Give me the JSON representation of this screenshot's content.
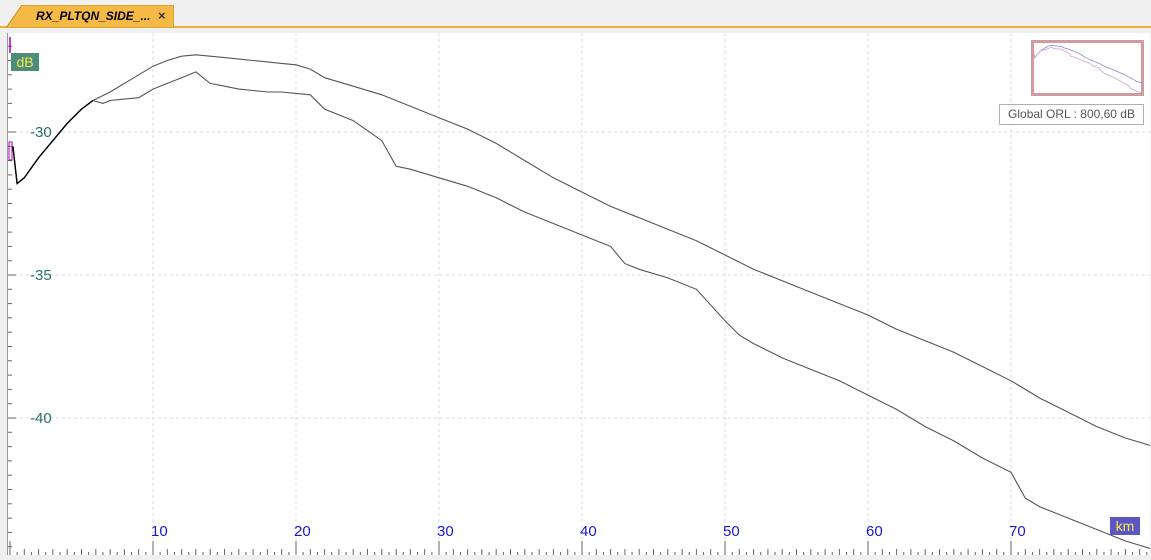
{
  "tab": {
    "label": "RX_PLTQN_SIDE_...",
    "close_glyph": "×"
  },
  "units": {
    "y": "dB",
    "x": "km"
  },
  "orl": {
    "text": "Global ORL : 800,60 dB"
  },
  "colors": {
    "trace": "#555555",
    "trace_start": "#000000",
    "x_tick": "#1a1acc",
    "y_tick": "#2a6f6f",
    "tab": "#f5b946",
    "overview_window": "#d9707a"
  },
  "chart_data": {
    "type": "line",
    "x_ticks": [
      10,
      20,
      30,
      40,
      50,
      60,
      70
    ],
    "y_ticks": [
      -30,
      -35,
      -40
    ],
    "xlim": [
      0,
      80
    ],
    "ylim": [
      -44.6,
      -26.4
    ],
    "grid": true,
    "series": [
      {
        "x": [
          0.2,
          0.5,
          1,
          2,
          3,
          4,
          5,
          5.8,
          7,
          8,
          9,
          10,
          11,
          12,
          13,
          14,
          15,
          16,
          17,
          18,
          19,
          20,
          21,
          22,
          24,
          26,
          28,
          30,
          32,
          34,
          36,
          38,
          40,
          42,
          44,
          46,
          48,
          50,
          52,
          54,
          56,
          58,
          60,
          62,
          64,
          66,
          68,
          70,
          72,
          74,
          76,
          78,
          80
        ],
        "y": [
          -30.5,
          -31.8,
          -31.6,
          -30.9,
          -30.3,
          -29.7,
          -29.2,
          -28.9,
          -28.6,
          -28.3,
          -28.0,
          -27.7,
          -27.5,
          -27.35,
          -27.3,
          -27.35,
          -27.4,
          -27.45,
          -27.5,
          -27.55,
          -27.6,
          -27.65,
          -27.8,
          -28.1,
          -28.4,
          -28.7,
          -29.1,
          -29.5,
          -29.9,
          -30.4,
          -31.0,
          -31.6,
          -32.1,
          -32.6,
          -33.0,
          -33.4,
          -33.8,
          -34.3,
          -34.8,
          -35.2,
          -35.6,
          -36.0,
          -36.4,
          -36.9,
          -37.3,
          -37.7,
          -38.2,
          -38.7,
          -39.3,
          -39.8,
          -40.3,
          -40.7,
          -41.0
        ]
      },
      {
        "x": [
          0.2,
          0.5,
          1,
          2,
          3,
          4,
          5,
          5.8,
          6.5,
          7,
          8,
          9,
          10,
          11,
          12,
          13,
          14,
          15,
          16,
          17,
          18,
          19,
          20,
          21,
          22,
          24,
          26,
          27,
          28,
          30,
          32,
          34,
          36,
          38,
          40,
          42,
          43,
          44,
          46,
          48,
          50,
          51,
          52,
          54,
          56,
          58,
          60,
          62,
          64,
          66,
          68,
          70,
          71,
          72,
          74,
          76,
          78,
          80
        ],
        "y": [
          -30.5,
          -31.8,
          -31.6,
          -30.9,
          -30.3,
          -29.7,
          -29.2,
          -28.9,
          -29.0,
          -28.9,
          -28.85,
          -28.8,
          -28.5,
          -28.3,
          -28.1,
          -27.9,
          -28.3,
          -28.4,
          -28.5,
          -28.55,
          -28.6,
          -28.6,
          -28.65,
          -28.7,
          -29.2,
          -29.6,
          -30.3,
          -31.2,
          -31.3,
          -31.6,
          -31.9,
          -32.3,
          -32.8,
          -33.2,
          -33.6,
          -34.0,
          -34.6,
          -34.8,
          -35.1,
          -35.5,
          -36.6,
          -37.1,
          -37.4,
          -37.9,
          -38.3,
          -38.7,
          -39.2,
          -39.7,
          -40.3,
          -40.8,
          -41.4,
          -41.9,
          -42.8,
          -43.1,
          -43.5,
          -43.9,
          -44.3,
          -44.6
        ]
      }
    ]
  }
}
